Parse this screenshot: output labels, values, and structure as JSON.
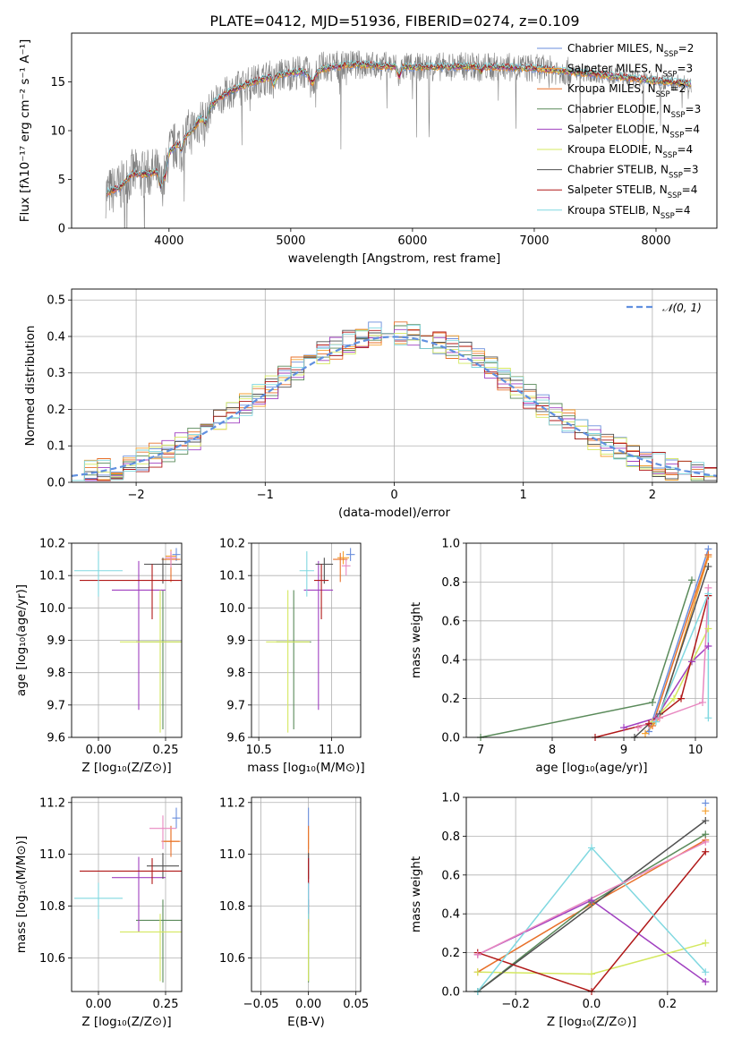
{
  "figure_title": "PLATE=0412, MJD=51936, FIBERID=0274, z=0.109",
  "models": [
    {
      "label": "Chabrier MILES, N",
      "nssp": "=2",
      "color": "#6a8edc"
    },
    {
      "label": "Salpeter MILES, N",
      "nssp": "=3",
      "color": "#f4a030"
    },
    {
      "label": "Kroupa MILES, N",
      "nssp": "=2",
      "color": "#e8702a"
    },
    {
      "label": "Chabrier ELODIE, N",
      "nssp": "=3",
      "color": "#5a8a5a"
    },
    {
      "label": "Salpeter ELODIE, N",
      "nssp": "=4",
      "color": "#a040c0"
    },
    {
      "label": "Kroupa ELODIE, N",
      "nssp": "=4",
      "color": "#d4e860"
    },
    {
      "label": "Chabrier STELIB, N",
      "nssp": "=3",
      "color": "#505050"
    },
    {
      "label": "Salpeter STELIB, N",
      "nssp": "=4",
      "color": "#b01818"
    },
    {
      "label": "Kroupa STELIB, N",
      "nssp": "=4",
      "color": "#80d8e0"
    }
  ],
  "nssp_sub": "SSP",
  "extra_colors": {
    "pink": "#e888c0",
    "data": "#808080",
    "gaussian": "#6090e0"
  },
  "chart_data": [
    {
      "id": "spectrum",
      "type": "line",
      "xlabel": "wavelength [Angstrom, rest frame]",
      "ylabel": "Flux [fλ10⁻¹⁷ erg cm⁻² s⁻¹ A⁻¹]",
      "xlim": [
        3200,
        8500
      ],
      "ylim": [
        0,
        20
      ],
      "xticks": [
        4000,
        5000,
        6000,
        7000,
        8000
      ],
      "yticks": [
        0,
        5,
        10,
        15
      ],
      "data_range": [
        3480,
        8290
      ],
      "anchors_x": [
        3480,
        3600,
        3700,
        3800,
        3900,
        4000,
        4100,
        4200,
        4300,
        4400,
        4500,
        4600,
        4800,
        5000,
        5200,
        5500,
        6000,
        6500,
        7000,
        7500,
        8000,
        8300
      ],
      "anchors_y": [
        3.6,
        4.2,
        5.6,
        5.5,
        5.8,
        7.8,
        9.0,
        10.2,
        12.0,
        13.2,
        14.0,
        14.6,
        15.4,
        15.9,
        16.2,
        16.8,
        16.5,
        16.6,
        16.4,
        15.8,
        15.1,
        14.8
      ],
      "grid": false
    },
    {
      "id": "residuals",
      "type": "line",
      "xlabel": "(data-model)/error",
      "ylabel": "Normed distribution",
      "xlim": [
        -2.5,
        2.5
      ],
      "ylim": [
        0,
        0.53
      ],
      "xticks": [
        -2,
        -1,
        0,
        1,
        2
      ],
      "xticklabels": [
        "−2",
        "−1",
        "0",
        "1",
        "2"
      ],
      "yticks": [
        0.0,
        0.1,
        0.2,
        0.3,
        0.4,
        0.5
      ],
      "reference": {
        "name": "𝒩(0, 1)",
        "mean": 0,
        "sigma": 1
      },
      "legend": "top-right",
      "grid": true
    },
    {
      "id": "age-vs-Z",
      "type": "scatter",
      "xlabel": "Z [log₁₀(Z/Z⊙)]",
      "ylabel": "age  [log₁₀(age/yr)]",
      "xlim": [
        -0.1,
        0.31
      ],
      "ylim": [
        9.6,
        10.2
      ],
      "xticks": [
        0.0,
        0.25
      ],
      "xticklabels": [
        "0.00",
        "0.25"
      ],
      "yticks": [
        9.6,
        9.7,
        9.8,
        9.9,
        10.0,
        10.1,
        10.2
      ],
      "grid": true,
      "points": [
        {
          "c": 0,
          "x": 0.29,
          "y": 10.165,
          "xe": 0.015,
          "yu": 0.02,
          "yd": 0.02
        },
        {
          "c": 1,
          "x": 0.27,
          "y": 10.16,
          "xe": 0.02,
          "yu": 0.02,
          "yd": 0.02
        },
        {
          "c": 2,
          "x": 0.27,
          "y": 10.15,
          "xe": 0.035,
          "yu": 0.02,
          "yd": 0.07
        },
        {
          "c": 3,
          "x": 0.24,
          "y": 9.895,
          "xe": 0.1,
          "yu": 0.16,
          "yd": 0.27
        },
        {
          "c": 4,
          "x": 0.15,
          "y": 10.055,
          "xe": 0.1,
          "yu": 0.09,
          "yd": 0.37
        },
        {
          "c": 5,
          "x": 0.23,
          "y": 9.895,
          "xe": 0.15,
          "yu": 0.16,
          "yd": 0.28
        },
        {
          "c": 6,
          "x": 0.24,
          "y": 10.135,
          "xe": 0.07,
          "yu": 0.02,
          "yd": 0.06
        },
        {
          "c": 7,
          "x": 0.2,
          "y": 10.085,
          "xe": 0.27,
          "yu": 0.05,
          "yd": 0.12
        },
        {
          "c": 8,
          "x": 0.0,
          "y": 10.115,
          "xe": 0.09,
          "yu": 0.06,
          "yd": 0.08
        },
        {
          "c": 9,
          "x": 0.27,
          "y": 10.155,
          "xe": 0.02,
          "yu": 0.02,
          "yd": 0.03
        }
      ]
    },
    {
      "id": "age-vs-mass",
      "type": "scatter",
      "xlabel": "mass [log₁₀(M/M⊙)]",
      "ylabel": "",
      "xlim": [
        10.45,
        11.2
      ],
      "ylim": [
        9.6,
        10.2
      ],
      "xticks": [
        10.5,
        11.0
      ],
      "xticklabels": [
        "10.5",
        "11.0"
      ],
      "yticks": [
        9.6,
        9.7,
        9.8,
        9.9,
        10.0,
        10.1,
        10.2
      ],
      "grid": true,
      "points": [
        {
          "c": 0,
          "x": 11.13,
          "y": 10.165,
          "xe": 0.03,
          "yu": 0.02,
          "yd": 0.02
        },
        {
          "c": 1,
          "x": 11.08,
          "y": 10.155,
          "xe": 0.04,
          "yu": 0.02,
          "yd": 0.02
        },
        {
          "c": 2,
          "x": 11.06,
          "y": 10.15,
          "xe": 0.05,
          "yu": 0.02,
          "yd": 0.07
        },
        {
          "c": 3,
          "x": 10.74,
          "y": 9.895,
          "xe": 0.12,
          "yu": 0.16,
          "yd": 0.27
        },
        {
          "c": 4,
          "x": 10.91,
          "y": 10.055,
          "xe": 0.1,
          "yu": 0.09,
          "yd": 0.37
        },
        {
          "c": 5,
          "x": 10.7,
          "y": 9.895,
          "xe": 0.15,
          "yu": 0.16,
          "yd": 0.28
        },
        {
          "c": 6,
          "x": 10.95,
          "y": 10.135,
          "xe": 0.06,
          "yu": 0.02,
          "yd": 0.06
        },
        {
          "c": 7,
          "x": 10.93,
          "y": 10.085,
          "xe": 0.05,
          "yu": 0.05,
          "yd": 0.12
        },
        {
          "c": 8,
          "x": 10.83,
          "y": 10.115,
          "xe": 0.05,
          "yu": 0.06,
          "yd": 0.08
        },
        {
          "c": 9,
          "x": 11.1,
          "y": 10.13,
          "xe": 0.03,
          "yu": 0.02,
          "yd": 0.03
        }
      ]
    },
    {
      "id": "weight-vs-age",
      "type": "line",
      "xlabel": "age  [log₁₀(age/yr)]",
      "ylabel": "mass weight",
      "xlim": [
        6.8,
        10.3
      ],
      "ylim": [
        0,
        1
      ],
      "xticks": [
        7,
        8,
        9,
        10
      ],
      "yticks": [
        0.0,
        0.2,
        0.4,
        0.6,
        0.8,
        1.0
      ],
      "grid": true,
      "lines": [
        {
          "c": 0,
          "x": [
            9.35,
            10.18
          ],
          "y": [
            0.03,
            0.97
          ]
        },
        {
          "c": 1,
          "x": [
            9.3,
            9.5,
            10.18
          ],
          "y": [
            0.02,
            0.1,
            0.93
          ]
        },
        {
          "c": 2,
          "x": [
            9.4,
            10.18
          ],
          "y": [
            0.06,
            0.94
          ]
        },
        {
          "c": 3,
          "x": [
            7.0,
            9.4,
            9.95
          ],
          "y": [
            0.0,
            0.18,
            0.81
          ]
        },
        {
          "c": 4,
          "x": [
            9.0,
            9.45,
            9.95,
            10.18
          ],
          "y": [
            0.05,
            0.1,
            0.39,
            0.47
          ]
        },
        {
          "c": 5,
          "x": [
            9.4,
            9.7,
            10.18
          ],
          "y": [
            0.08,
            0.2,
            0.56
          ]
        },
        {
          "c": 6,
          "x": [
            9.15,
            9.5,
            10.18
          ],
          "y": [
            0.0,
            0.12,
            0.88
          ]
        },
        {
          "c": 7,
          "x": [
            8.6,
            9.35,
            9.8,
            10.18
          ],
          "y": [
            0.0,
            0.07,
            0.2,
            0.73
          ]
        },
        {
          "c": 8,
          "x": [
            9.45,
            10.18,
            10.18
          ],
          "y": [
            0.08,
            0.74,
            0.1
          ]
        },
        {
          "c": 9,
          "x": [
            9.2,
            9.5,
            10.1,
            10.18
          ],
          "y": [
            0.05,
            0.1,
            0.18,
            0.77
          ]
        }
      ]
    },
    {
      "id": "mass-vs-Z",
      "type": "scatter",
      "xlabel": "Z [log₁₀(Z/Z⊙)]",
      "ylabel": "mass [log₁₀(M/M⊙)]",
      "xlim": [
        -0.1,
        0.31
      ],
      "ylim": [
        10.47,
        11.22
      ],
      "xticks": [
        0.0,
        0.25
      ],
      "xticklabels": [
        "0.00",
        "0.25"
      ],
      "yticks": [
        10.6,
        10.8,
        11.0,
        11.2
      ],
      "grid": true,
      "points": [
        {
          "c": 0,
          "x": 0.29,
          "y": 11.14,
          "xe": 0.015,
          "yu": 0.04,
          "yd": 0.04
        },
        {
          "c": 1,
          "x": 0.27,
          "y": 11.05,
          "xe": 0.03,
          "yu": 0.05,
          "yd": 0.03
        },
        {
          "c": 2,
          "x": 0.27,
          "y": 11.05,
          "xe": 0.035,
          "yu": 0.06,
          "yd": 0.06
        },
        {
          "c": 3,
          "x": 0.24,
          "y": 10.745,
          "xe": 0.1,
          "yu": 0.08,
          "yd": 0.24
        },
        {
          "c": 4,
          "x": 0.15,
          "y": 10.91,
          "xe": 0.1,
          "yu": 0.08,
          "yd": 0.21
        },
        {
          "c": 5,
          "x": 0.23,
          "y": 10.7,
          "xe": 0.15,
          "yu": 0.07,
          "yd": 0.19
        },
        {
          "c": 6,
          "x": 0.24,
          "y": 10.955,
          "xe": 0.06,
          "yu": 0.05,
          "yd": 0.05
        },
        {
          "c": 7,
          "x": 0.2,
          "y": 10.935,
          "xe": 0.27,
          "yu": 0.05,
          "yd": 0.05
        },
        {
          "c": 8,
          "x": 0.0,
          "y": 10.83,
          "xe": 0.09,
          "yu": 0.06,
          "yd": 0.08
        },
        {
          "c": 9,
          "x": 0.24,
          "y": 11.1,
          "xe": 0.05,
          "yu": 0.05,
          "yd": 0.08
        }
      ]
    },
    {
      "id": "mass-vs-ebv",
      "type": "scatter",
      "xlabel": "E(B-V)",
      "ylabel": "",
      "xlim": [
        -0.06,
        0.055
      ],
      "ylim": [
        10.47,
        11.22
      ],
      "xticks": [
        -0.05,
        0.0,
        0.05
      ],
      "xticklabels": [
        "−0.05",
        "0.00",
        "0.05"
      ],
      "yticks": [
        10.6,
        10.8,
        11.0,
        11.2
      ],
      "grid": true,
      "points": [
        {
          "c": 0,
          "x": 0.0,
          "y": 11.14,
          "xe": 0.0,
          "yu": 0.04,
          "yd": 0.04
        },
        {
          "c": 1,
          "x": 0.0,
          "y": 11.05,
          "xe": 0.0,
          "yu": 0.05,
          "yd": 0.03
        },
        {
          "c": 2,
          "x": 0.0,
          "y": 11.05,
          "xe": 0.0,
          "yu": 0.06,
          "yd": 0.06
        },
        {
          "c": 3,
          "x": 0.0,
          "y": 10.745,
          "xe": 0.0,
          "yu": 0.08,
          "yd": 0.24
        },
        {
          "c": 4,
          "x": 0.0,
          "y": 10.91,
          "xe": 0.0,
          "yu": 0.08,
          "yd": 0.21
        },
        {
          "c": 5,
          "x": 0.0,
          "y": 10.7,
          "xe": 0.0,
          "yu": 0.07,
          "yd": 0.19
        },
        {
          "c": 6,
          "x": 0.0,
          "y": 10.955,
          "xe": 0.0,
          "yu": 0.05,
          "yd": 0.05
        },
        {
          "c": 7,
          "x": 0.0,
          "y": 10.935,
          "xe": 0.0,
          "yu": 0.05,
          "yd": 0.05
        },
        {
          "c": 8,
          "x": 0.0,
          "y": 10.83,
          "xe": 0.0,
          "yu": 0.06,
          "yd": 0.08
        }
      ]
    },
    {
      "id": "weight-vs-Z",
      "type": "line",
      "xlabel": "Z [log₁₀(Z/Z⊙)]",
      "ylabel": "mass weight",
      "xlim": [
        -0.33,
        0.33
      ],
      "ylim": [
        0,
        1
      ],
      "xticks": [
        -0.2,
        0.0,
        0.2
      ],
      "xticklabels": [
        "−0.2",
        "0.0",
        "0.2"
      ],
      "yticks": [
        0.0,
        0.2,
        0.4,
        0.6,
        0.8,
        1.0
      ],
      "grid": true,
      "lines": [
        {
          "c": 0,
          "x": [
            0.3
          ],
          "y": [
            0.97
          ]
        },
        {
          "c": 1,
          "x": [
            0.3
          ],
          "y": [
            0.93
          ]
        },
        {
          "c": 2,
          "x": [
            -0.3,
            0.0,
            0.3
          ],
          "y": [
            0.1,
            0.45,
            0.78
          ]
        },
        {
          "c": 3,
          "x": [
            -0.3,
            0.0,
            0.3
          ],
          "y": [
            0.0,
            0.46,
            0.81
          ]
        },
        {
          "c": 4,
          "x": [
            -0.3,
            0.0,
            0.3
          ],
          "y": [
            0.19,
            0.47,
            0.05
          ]
        },
        {
          "c": 5,
          "x": [
            -0.3,
            0.0,
            0.3
          ],
          "y": [
            0.1,
            0.09,
            0.25
          ]
        },
        {
          "c": 6,
          "x": [
            -0.3,
            0.3
          ],
          "y": [
            0.0,
            0.88
          ]
        },
        {
          "c": 7,
          "x": [
            -0.3,
            0.0,
            0.3
          ],
          "y": [
            0.2,
            0.0,
            0.72
          ]
        },
        {
          "c": 8,
          "x": [
            -0.3,
            0.0,
            0.3
          ],
          "y": [
            0.0,
            0.74,
            0.1
          ]
        },
        {
          "c": 9,
          "x": [
            -0.3,
            0.3
          ],
          "y": [
            0.19,
            0.77
          ]
        }
      ]
    }
  ]
}
